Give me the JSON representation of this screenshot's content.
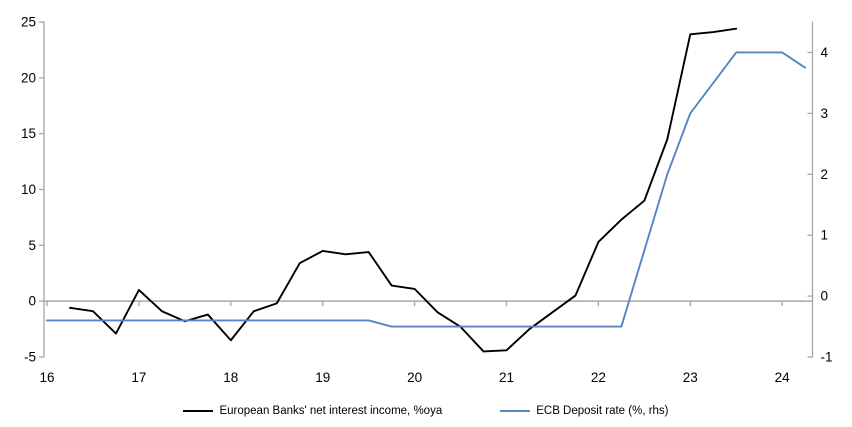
{
  "chart_data": {
    "type": "line",
    "title": "",
    "grid": "zero-line-only",
    "legend_position": "bottom",
    "x_axis": {
      "range": [
        15.967,
        24.33
      ],
      "ticks": [
        16,
        17,
        18,
        19,
        20,
        21,
        22,
        23,
        24
      ],
      "tick_labels": [
        "16",
        "17",
        "18",
        "19",
        "20",
        "21",
        "22",
        "23",
        "24"
      ]
    },
    "left_axis": {
      "range": [
        -5,
        25
      ],
      "ticks": [
        25,
        20,
        15,
        10,
        5,
        0,
        -5
      ],
      "tick_labels": [
        "25",
        "20",
        "15",
        "10",
        "5",
        "0",
        "-5"
      ]
    },
    "right_axis": {
      "range": [
        -1,
        4.5
      ],
      "ticks": [
        4,
        3,
        2,
        1,
        0,
        -1
      ],
      "tick_labels": [
        "4",
        "3",
        "2",
        "1",
        "0",
        "-1"
      ]
    },
    "series": [
      {
        "name": "European Banks' net interest income, %oya",
        "axis": "left",
        "color": "#000000",
        "x": [
          16.25,
          16.5,
          16.75,
          17.0,
          17.25,
          17.5,
          17.75,
          18.0,
          18.25,
          18.5,
          18.75,
          19.0,
          19.25,
          19.5,
          19.75,
          20.0,
          20.25,
          20.5,
          20.75,
          21.0,
          21.25,
          21.5,
          21.75,
          22.0,
          22.25,
          22.5,
          22.75,
          23.0,
          23.25,
          23.5
        ],
        "values": [
          -0.6,
          -0.9,
          -2.9,
          1.0,
          -0.9,
          -1.8,
          -1.2,
          -3.5,
          -0.9,
          -0.2,
          3.4,
          4.5,
          4.2,
          4.4,
          1.4,
          1.1,
          -1.0,
          -2.3,
          -4.5,
          -4.4,
          -2.5,
          -1.0,
          0.5,
          5.3,
          7.3,
          9.0,
          14.5,
          23.9,
          24.1,
          24.4
        ]
      },
      {
        "name": "ECB Deposit rate (%, rhs)",
        "axis": "right",
        "color": "#5585C2",
        "x": [
          16.0,
          16.25,
          16.5,
          16.75,
          17.0,
          17.25,
          17.5,
          17.75,
          18.0,
          18.25,
          18.5,
          18.75,
          19.0,
          19.25,
          19.5,
          19.75,
          20.0,
          20.25,
          20.5,
          20.75,
          21.0,
          21.25,
          21.5,
          21.75,
          22.0,
          22.25,
          22.5,
          22.75,
          23.0,
          23.25,
          23.5,
          23.75,
          24.0,
          24.25
        ],
        "values": [
          -0.4,
          -0.4,
          -0.4,
          -0.4,
          -0.4,
          -0.4,
          -0.4,
          -0.4,
          -0.4,
          -0.4,
          -0.4,
          -0.4,
          -0.4,
          -0.4,
          -0.4,
          -0.5,
          -0.5,
          -0.5,
          -0.5,
          -0.5,
          -0.5,
          -0.5,
          -0.5,
          -0.5,
          -0.5,
          -0.5,
          0.75,
          2.0,
          3.0,
          3.5,
          4.0,
          4.0,
          4.0,
          3.75
        ]
      }
    ]
  },
  "legend": {
    "items": [
      {
        "label": "European Banks' net interest income, %oya"
      },
      {
        "label": "ECB Deposit rate (%, rhs)"
      }
    ]
  },
  "colors": {
    "axis_gray": "#A6A6A6",
    "text": "#000000",
    "background": "#FFFFFF",
    "series_nii": "#000000",
    "series_ecb": "#5585C2"
  }
}
